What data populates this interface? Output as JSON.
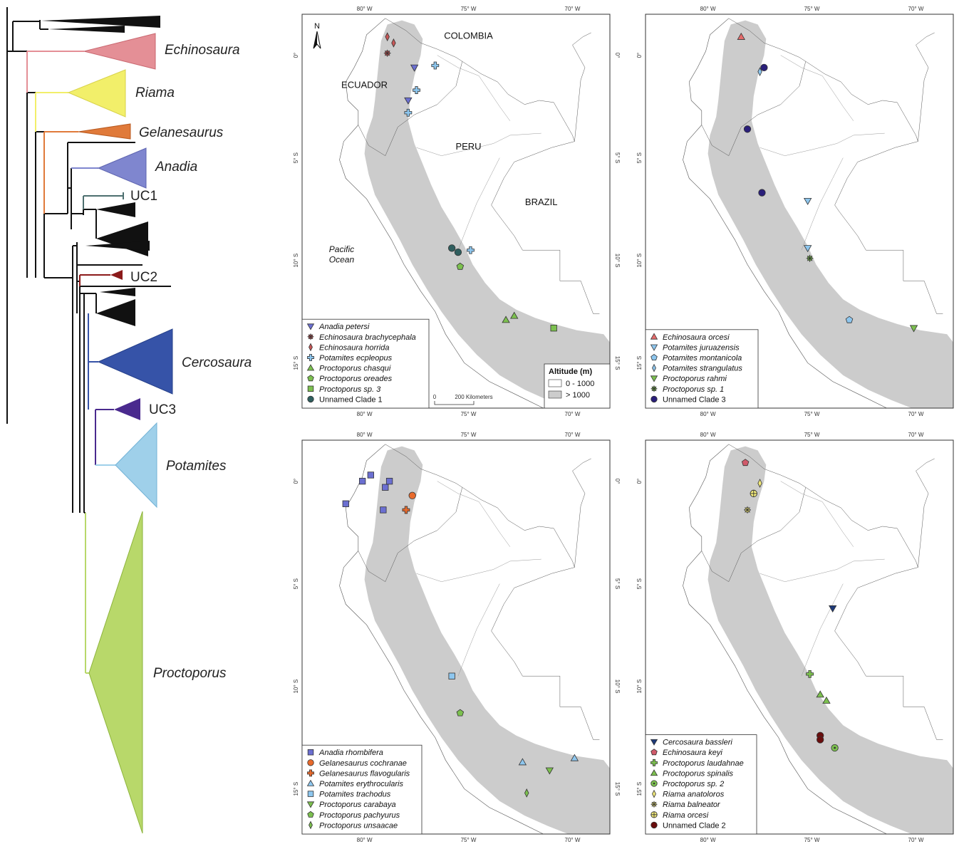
{
  "tree": {
    "clades": [
      {
        "id": "echinosaura",
        "label": "Echinosaura",
        "italic": true,
        "color": "#e48f96"
      },
      {
        "id": "riama",
        "label": "Riama",
        "italic": true,
        "color": "#f2ef6a"
      },
      {
        "id": "gelanesaurus",
        "label": "Gelanesaurus",
        "italic": true,
        "color": "#e07a3a"
      },
      {
        "id": "anadia",
        "label": "Anadia",
        "italic": true,
        "color": "#7f86cf"
      },
      {
        "id": "uc1",
        "label": "UC1",
        "italic": false,
        "color": "#4d6f6f"
      },
      {
        "id": "uc2",
        "label": "UC2",
        "italic": false,
        "color": "#8b1a1a"
      },
      {
        "id": "cercosaura",
        "label": "Cercosaura",
        "italic": true,
        "color": "#3653a8"
      },
      {
        "id": "uc3",
        "label": "UC3",
        "italic": false,
        "color": "#4a2a8e"
      },
      {
        "id": "potamites",
        "label": "Potamites",
        "italic": true,
        "color": "#9fd0ea"
      },
      {
        "id": "proctoporus",
        "label": "Proctoporus",
        "italic": true,
        "color": "#b8d86a"
      }
    ]
  },
  "maps": {
    "lon_ticks": [
      "80° W",
      "75° W",
      "70° W"
    ],
    "lat_ticks": [
      "0°",
      "5° S",
      "10° S",
      "15° S"
    ],
    "colors": {
      "land": "#cccccc",
      "border": "#ffffff",
      "outline": "#555555"
    },
    "countries": [
      "COLOMBIA",
      "ECUADOR",
      "PERU",
      "BRAZIL"
    ],
    "ocean_label_1": "Pacific",
    "ocean_label_2": "Ocean",
    "north_label": "N",
    "altitude": {
      "title": "Altitude (m)",
      "low": "0 - 1000",
      "high": "> 1000"
    },
    "scale": {
      "zero": "0",
      "distance": "200 Kilometers"
    },
    "panels": [
      {
        "legend": [
          {
            "name": "Anadia petersi",
            "symbol": "tri-down",
            "color": "#6b6fd1"
          },
          {
            "name": "Echinosaura brachycephala",
            "symbol": "asterisk",
            "color": "#c95757"
          },
          {
            "name": "Echinosaura horrida",
            "symbol": "diamond",
            "color": "#c95757"
          },
          {
            "name": "Potamites ecpleopus",
            "symbol": "cross",
            "color": "#8dc6ee"
          },
          {
            "name": "Proctoporus chasqui",
            "symbol": "tri-up",
            "color": "#7cc04f"
          },
          {
            "name": "Proctoporus oreades",
            "symbol": "pentagon",
            "color": "#7cc04f"
          },
          {
            "name": "Proctoporus sp. 3",
            "symbol": "square",
            "color": "#7cc04f"
          },
          {
            "name": "Unnamed Clade 1",
            "symbol": "circle",
            "color": "#2f5e5e"
          }
        ],
        "points": [
          {
            "s": 0,
            "lon": -77.6,
            "lat": -0.6
          },
          {
            "s": 0,
            "lon": -77.9,
            "lat": -2.2
          },
          {
            "s": 1,
            "lon": -78.9,
            "lat": 0.1
          },
          {
            "s": 2,
            "lon": -78.9,
            "lat": 0.9
          },
          {
            "s": 2,
            "lon": -78.6,
            "lat": 0.6
          },
          {
            "s": 3,
            "lon": -76.6,
            "lat": -0.5
          },
          {
            "s": 3,
            "lon": -77.5,
            "lat": -1.7
          },
          {
            "s": 3,
            "lon": -77.9,
            "lat": -2.8
          },
          {
            "s": 3,
            "lon": -74.9,
            "lat": -9.5
          },
          {
            "s": 4,
            "lon": -73.2,
            "lat": -12.9
          },
          {
            "s": 4,
            "lon": -72.8,
            "lat": -12.7
          },
          {
            "s": 5,
            "lon": -75.4,
            "lat": -10.3
          },
          {
            "s": 6,
            "lon": -70.9,
            "lat": -13.3
          },
          {
            "s": 7,
            "lon": -75.8,
            "lat": -9.4
          },
          {
            "s": 7,
            "lon": -75.5,
            "lat": -9.6
          }
        ]
      },
      {
        "legend": [
          {
            "name": "Echinosaura orcesi",
            "symbol": "tri-up",
            "color": "#e56b6b"
          },
          {
            "name": "Potamites juruazensis",
            "symbol": "tri-down",
            "color": "#8dc6ee"
          },
          {
            "name": "Potamites montanicola",
            "symbol": "pentagon",
            "color": "#8dc6ee"
          },
          {
            "name": "Potamites strangulatus",
            "symbol": "diamond",
            "color": "#8dc6ee"
          },
          {
            "name": "Proctoporus rahmi",
            "symbol": "tri-down",
            "color": "#7cc04f"
          },
          {
            "name": "Proctoporus sp. 1",
            "symbol": "asterisk",
            "color": "#7cc04f"
          },
          {
            "name": "Unnamed Clade 3",
            "symbol": "circle",
            "color": "#2a1f7a"
          }
        ],
        "points": [
          {
            "s": 0,
            "lon": -78.4,
            "lat": 0.9
          },
          {
            "s": 1,
            "lon": -75.2,
            "lat": -7.1
          },
          {
            "s": 1,
            "lon": -75.2,
            "lat": -9.4
          },
          {
            "s": 2,
            "lon": -73.2,
            "lat": -12.9
          },
          {
            "s": 3,
            "lon": -77.5,
            "lat": -0.8
          },
          {
            "s": 4,
            "lon": -70.1,
            "lat": -13.3
          },
          {
            "s": 5,
            "lon": -75.1,
            "lat": -9.9
          },
          {
            "s": 6,
            "lon": -77.3,
            "lat": -0.6
          },
          {
            "s": 6,
            "lon": -78.1,
            "lat": -3.6
          },
          {
            "s": 6,
            "lon": -77.4,
            "lat": -6.7
          }
        ]
      },
      {
        "legend": [
          {
            "name": "Anadia rhombifera",
            "symbol": "square",
            "color": "#6b6fd1"
          },
          {
            "name": "Gelanesaurus cochranae",
            "symbol": "circle",
            "color": "#e86a2c"
          },
          {
            "name": "Gelanesaurus flavogularis",
            "symbol": "cross",
            "color": "#e86a2c"
          },
          {
            "name": "Potamites erythrocularis",
            "symbol": "tri-up",
            "color": "#8dc6ee"
          },
          {
            "name": "Potamites trachodus",
            "symbol": "square",
            "color": "#8dc6ee"
          },
          {
            "name": "Proctoporus carabaya",
            "symbol": "tri-down",
            "color": "#7cc04f"
          },
          {
            "name": "Proctoporus pachyurus",
            "symbol": "pentagon",
            "color": "#7cc04f"
          },
          {
            "name": "Proctoporus unsaacae",
            "symbol": "diamond",
            "color": "#7cc04f"
          }
        ],
        "points": [
          {
            "s": 0,
            "lon": -80.9,
            "lat": -1.1
          },
          {
            "s": 0,
            "lon": -80.1,
            "lat": 0.0
          },
          {
            "s": 0,
            "lon": -79.7,
            "lat": 0.3
          },
          {
            "s": 0,
            "lon": -79.0,
            "lat": -0.3
          },
          {
            "s": 0,
            "lon": -78.8,
            "lat": 0.0
          },
          {
            "s": 0,
            "lon": -79.1,
            "lat": -1.4
          },
          {
            "s": 1,
            "lon": -77.7,
            "lat": -0.7
          },
          {
            "s": 2,
            "lon": -78.0,
            "lat": -1.4
          },
          {
            "s": 3,
            "lon": -72.4,
            "lat": -13.7
          },
          {
            "s": 3,
            "lon": -69.9,
            "lat": -13.5
          },
          {
            "s": 4,
            "lon": -75.8,
            "lat": -9.5
          },
          {
            "s": 5,
            "lon": -71.1,
            "lat": -14.1
          },
          {
            "s": 6,
            "lon": -75.4,
            "lat": -11.3
          },
          {
            "s": 7,
            "lon": -72.2,
            "lat": -15.2
          }
        ]
      },
      {
        "legend": [
          {
            "name": "Cercosaura bassleri",
            "symbol": "tri-down",
            "color": "#1e3a7a"
          },
          {
            "name": "Echinosaura keyi",
            "symbol": "pentagon",
            "color": "#d05a6a"
          },
          {
            "name": "Proctoporus laudahnae",
            "symbol": "cross",
            "color": "#7cc04f"
          },
          {
            "name": "Proctoporus spinalis",
            "symbol": "tri-up",
            "color": "#7cc04f"
          },
          {
            "name": "Proctoporus sp. 2",
            "symbol": "dotcircle",
            "color": "#7cc04f"
          },
          {
            "name": "Riama anatoloros",
            "symbol": "diamond",
            "color": "#f2ea7a"
          },
          {
            "name": "Riama balneator",
            "symbol": "asterisk",
            "color": "#f2ea7a"
          },
          {
            "name": "Riama orcesi",
            "symbol": "crosscircle",
            "color": "#f2ea7a"
          },
          {
            "name": "Unnamed Clade 2",
            "symbol": "circle",
            "color": "#6a0d0d"
          }
        ],
        "points": [
          {
            "s": 0,
            "lon": -74.0,
            "lat": -6.2
          },
          {
            "s": 1,
            "lon": -78.2,
            "lat": 0.9
          },
          {
            "s": 2,
            "lon": -75.1,
            "lat": -9.4
          },
          {
            "s": 3,
            "lon": -74.6,
            "lat": -10.4
          },
          {
            "s": 3,
            "lon": -74.3,
            "lat": -10.7
          },
          {
            "s": 4,
            "lon": -73.9,
            "lat": -13.0
          },
          {
            "s": 5,
            "lon": -77.5,
            "lat": -0.1
          },
          {
            "s": 6,
            "lon": -78.1,
            "lat": -1.4
          },
          {
            "s": 7,
            "lon": -77.8,
            "lat": -0.6
          },
          {
            "s": 8,
            "lon": -74.6,
            "lat": -12.4
          },
          {
            "s": 8,
            "lon": -74.6,
            "lat": -12.6
          }
        ]
      }
    ]
  }
}
